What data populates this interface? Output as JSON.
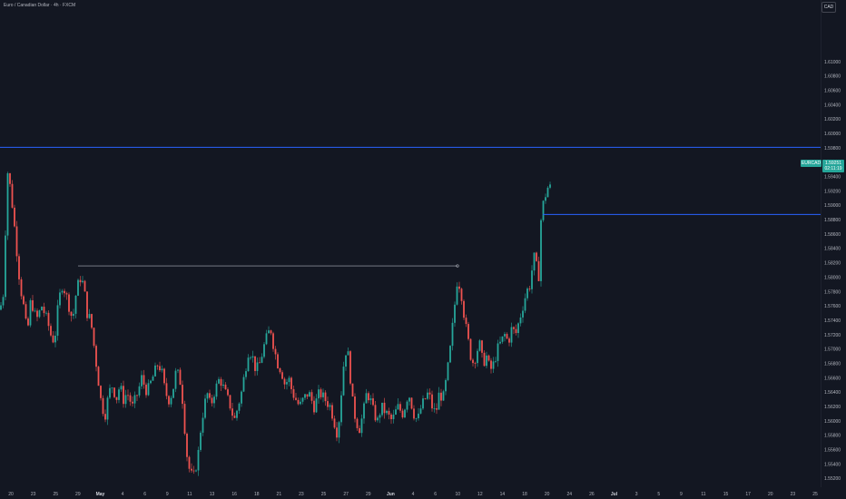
{
  "header": {
    "title": "Euro / Canadian Dollar · 4h · FXCM"
  },
  "currency_label": "CAD",
  "last_price": {
    "symbol": "EURCAD",
    "price": "1.59251",
    "countdown": "02:11:19"
  },
  "colors": {
    "background": "#131722",
    "up": "#26a69a",
    "down": "#ef5350",
    "hline": "#2962ff",
    "trend": "#b2b5be",
    "text": "#b2b5be"
  },
  "chart_data": {
    "type": "candlestick",
    "title": "Euro / Canadian Dollar · 4h · FXCM",
    "symbol": "EURCAD",
    "y_axis": {
      "side": "right",
      "range": [
        1.5508,
        1.6186
      ],
      "ticks": [
        "1.61000",
        "1.60800",
        "1.60600",
        "1.60400",
        "1.60200",
        "1.60000",
        "1.59800",
        "1.59600",
        "1.59400",
        "1.59200",
        "1.59000",
        "1.58800",
        "1.58600",
        "1.58400",
        "1.58200",
        "1.58000",
        "1.57800",
        "1.57600",
        "1.57400",
        "1.57200",
        "1.57000",
        "1.56800",
        "1.56600",
        "1.56400",
        "1.56200",
        "1.56000",
        "1.55800",
        "1.55600",
        "1.55400",
        "1.55200"
      ]
    },
    "x_axis": {
      "ticks": [
        "20",
        "23",
        "25",
        "29",
        "May",
        "4",
        "6",
        "9",
        "11",
        "13",
        "16",
        "18",
        "21",
        "23",
        "25",
        "27",
        "29",
        "Jun",
        "4",
        "6",
        "10",
        "12",
        "14",
        "18",
        "20",
        "24",
        "26",
        "Jul",
        "3",
        "5",
        "9",
        "11",
        "15",
        "17",
        "20",
        "23",
        "25"
      ],
      "bold_ticks": [
        "May",
        "Jun",
        "Jul"
      ]
    },
    "anchors": [
      [
        0,
        1.5755
      ],
      [
        4,
        1.578
      ],
      [
        8,
        1.595
      ],
      [
        12,
        1.592
      ],
      [
        16,
        1.587
      ],
      [
        22,
        1.579
      ],
      [
        26,
        1.576
      ],
      [
        30,
        1.572
      ],
      [
        34,
        1.577
      ],
      [
        40,
        1.574
      ],
      [
        46,
        1.576
      ],
      [
        52,
        1.574
      ],
      [
        56,
        1.572
      ],
      [
        60,
        1.571
      ],
      [
        64,
        1.576
      ],
      [
        68,
        1.579
      ],
      [
        72,
        1.578
      ],
      [
        76,
        1.576
      ],
      [
        80,
        1.574
      ],
      [
        84,
        1.578
      ],
      [
        88,
        1.58
      ],
      [
        92,
        1.579
      ],
      [
        96,
        1.575
      ],
      [
        100,
        1.574
      ],
      [
        104,
        1.57
      ],
      [
        108,
        1.566
      ],
      [
        112,
        1.562
      ],
      [
        116,
        1.561
      ],
      [
        120,
        1.564
      ],
      [
        124,
        1.565
      ],
      [
        128,
        1.563
      ],
      [
        132,
        1.565
      ],
      [
        136,
        1.563
      ],
      [
        140,
        1.564
      ],
      [
        146,
        1.562
      ],
      [
        152,
        1.564
      ],
      [
        156,
        1.566
      ],
      [
        162,
        1.564
      ],
      [
        168,
        1.566
      ],
      [
        174,
        1.568
      ],
      [
        178,
        1.567
      ],
      [
        182,
        1.564
      ],
      [
        186,
        1.563
      ],
      [
        190,
        1.564
      ],
      [
        194,
        1.567
      ],
      [
        198,
        1.566
      ],
      [
        202,
        1.562
      ],
      [
        205,
        1.556
      ],
      [
        209,
        1.553
      ],
      [
        213,
        1.552
      ],
      [
        218,
        1.555
      ],
      [
        222,
        1.56
      ],
      [
        228,
        1.564
      ],
      [
        232,
        1.562
      ],
      [
        236,
        1.564
      ],
      [
        242,
        1.566
      ],
      [
        248,
        1.564
      ],
      [
        254,
        1.562
      ],
      [
        258,
        1.56
      ],
      [
        262,
        1.562
      ],
      [
        266,
        1.564
      ],
      [
        270,
        1.567
      ],
      [
        274,
        1.57
      ],
      [
        278,
        1.569
      ],
      [
        282,
        1.567
      ],
      [
        286,
        1.568
      ],
      [
        292,
        1.571
      ],
      [
        298,
        1.573
      ],
      [
        302,
        1.57
      ],
      [
        306,
        1.568
      ],
      [
        310,
        1.567
      ],
      [
        314,
        1.565
      ],
      [
        318,
        1.566
      ],
      [
        322,
        1.564
      ],
      [
        326,
        1.563
      ],
      [
        330,
        1.562
      ],
      [
        334,
        1.563
      ],
      [
        340,
        1.564
      ],
      [
        346,
        1.562
      ],
      [
        352,
        1.564
      ],
      [
        358,
        1.563
      ],
      [
        364,
        1.562
      ],
      [
        368,
        1.56
      ],
      [
        372,
        1.558
      ],
      [
        376,
        1.564
      ],
      [
        380,
        1.57
      ],
      [
        384,
        1.569
      ],
      [
        388,
        1.563
      ],
      [
        392,
        1.56
      ],
      [
        396,
        1.559
      ],
      [
        400,
        1.561
      ],
      [
        404,
        1.564
      ],
      [
        408,
        1.563
      ],
      [
        412,
        1.561
      ],
      [
        416,
        1.56
      ],
      [
        420,
        1.562
      ],
      [
        426,
        1.561
      ],
      [
        432,
        1.56
      ],
      [
        438,
        1.562
      ],
      [
        444,
        1.561
      ],
      [
        450,
        1.564
      ],
      [
        456,
        1.561
      ],
      [
        460,
        1.56
      ],
      [
        464,
        1.562
      ],
      [
        468,
        1.563
      ],
      [
        472,
        1.564
      ],
      [
        476,
        1.562
      ],
      [
        480,
        1.561
      ],
      [
        484,
        1.564
      ],
      [
        488,
        1.563
      ],
      [
        492,
        1.566
      ],
      [
        496,
        1.57
      ],
      [
        500,
        1.575
      ],
      [
        504,
        1.58
      ],
      [
        508,
        1.578
      ],
      [
        512,
        1.574
      ],
      [
        516,
        1.571
      ],
      [
        520,
        1.568
      ],
      [
        524,
        1.569
      ],
      [
        528,
        1.571
      ],
      [
        532,
        1.568
      ],
      [
        536,
        1.569
      ],
      [
        540,
        1.567
      ],
      [
        544,
        1.568
      ],
      [
        548,
        1.57
      ],
      [
        552,
        1.571
      ],
      [
        556,
        1.572
      ],
      [
        560,
        1.571
      ],
      [
        564,
        1.573
      ],
      [
        568,
        1.572
      ],
      [
        572,
        1.574
      ],
      [
        576,
        1.576
      ],
      [
        580,
        1.578
      ],
      [
        584,
        1.579
      ],
      [
        588,
        1.583
      ],
      [
        592,
        1.581
      ],
      [
        594,
        1.58
      ],
      [
        596,
        1.588
      ],
      [
        598,
        1.59
      ],
      [
        600,
        1.591
      ],
      [
        603,
        1.5925
      ],
      [
        606,
        1.5925
      ]
    ],
    "horizontal_lines": [
      {
        "price": 1.5981,
        "color": "#2962ff",
        "extent": "full"
      },
      {
        "price": 1.58875,
        "color": "#2962ff",
        "extent": "from last swing"
      }
    ],
    "trend_line": {
      "from_price": 1.5816,
      "to_price": 1.5816,
      "color": "#b2b5be"
    },
    "grid": false,
    "last_price": 1.59251
  }
}
